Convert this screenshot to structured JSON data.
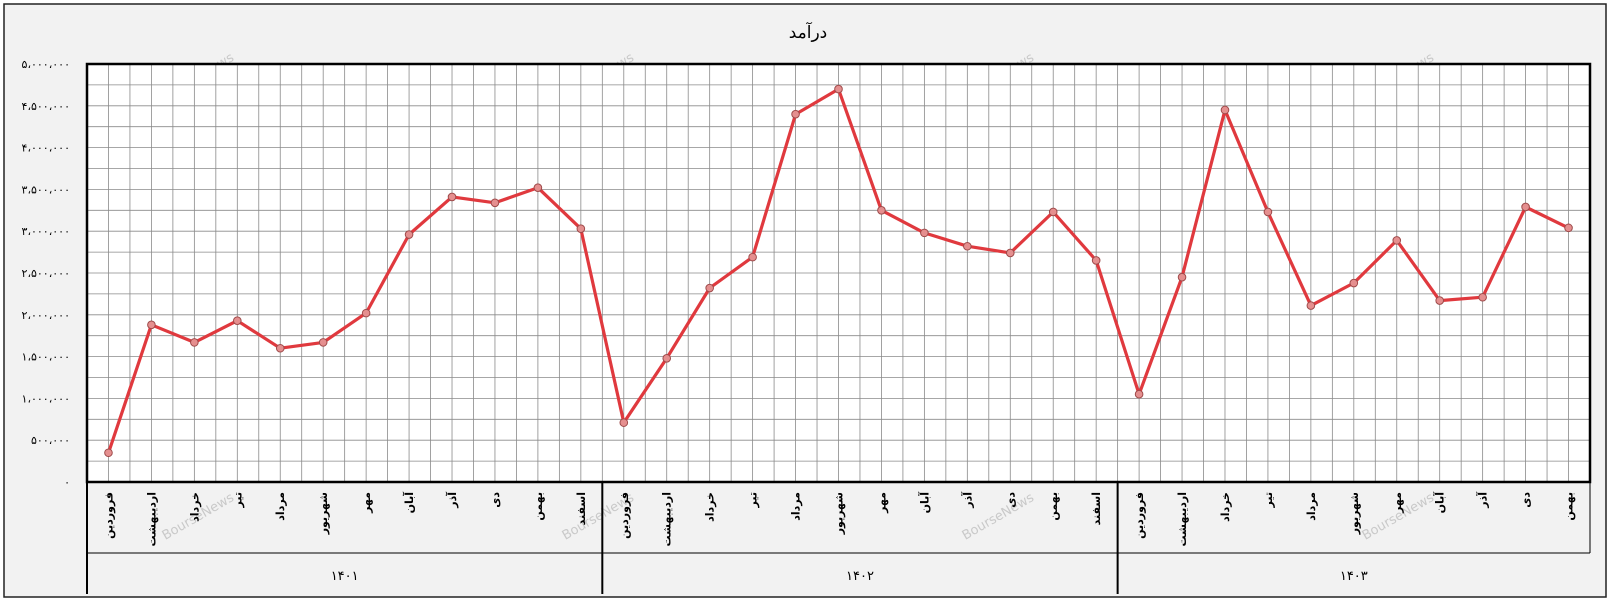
{
  "chart_data": {
    "type": "line",
    "title": "درآمد",
    "xlabel": "",
    "ylabel": "",
    "ylim": [
      0,
      5000000
    ],
    "yticks": [
      {
        "value": 0,
        "label": "۰"
      },
      {
        "value": 500000,
        "label": "۵۰۰،۰۰۰"
      },
      {
        "value": 1000000,
        "label": "۱،۰۰۰،۰۰۰"
      },
      {
        "value": 1500000,
        "label": "۱،۵۰۰،۰۰۰"
      },
      {
        "value": 2000000,
        "label": "۲،۰۰۰،۰۰۰"
      },
      {
        "value": 2500000,
        "label": "۲،۵۰۰،۰۰۰"
      },
      {
        "value": 3000000,
        "label": "۳،۰۰۰،۰۰۰"
      },
      {
        "value": 3500000,
        "label": "۳،۵۰۰،۰۰۰"
      },
      {
        "value": 4000000,
        "label": "۴،۰۰۰،۰۰۰"
      },
      {
        "value": 4500000,
        "label": "۴،۵۰۰،۰۰۰"
      },
      {
        "value": 5000000,
        "label": "۵،۰۰۰،۰۰۰"
      }
    ],
    "grid": true,
    "legend": "none",
    "watermark": "BourseNews",
    "line_color": "#e0393e",
    "marker_color": "#e58f8f",
    "groups": [
      {
        "label": "۱۴۰۱",
        "count": 12
      },
      {
        "label": "۱۴۰۲",
        "count": 12
      },
      {
        "label": "۱۴۰۳",
        "count": 11
      }
    ],
    "categories": [
      "فروردین",
      "اردیبهشت",
      "خرداد",
      "تیر",
      "مرداد",
      "شهریور",
      "مهر",
      "آبان",
      "آذر",
      "دی",
      "بهمن",
      "اسفند",
      "فروردین",
      "اردیبهشت",
      "خرداد",
      "تیر",
      "مرداد",
      "شهریور",
      "مهر",
      "آبان",
      "آذر",
      "دی",
      "بهمن",
      "اسفند",
      "فروردین",
      "اردیبهشت",
      "خرداد",
      "تیر",
      "مرداد",
      "شهریور",
      "مهر",
      "آبان",
      "آذر",
      "دی",
      "بهمن"
    ],
    "series": [
      {
        "values": [
          350000,
          1880000,
          1670000,
          1930000,
          1600000,
          1670000,
          2020000,
          2960000,
          3410000,
          3340000,
          3520000,
          3030000,
          710000,
          1480000,
          2320000,
          2690000,
          4400000,
          4700000,
          3250000,
          2980000,
          2820000,
          2740000,
          3230000,
          2650000,
          1050000,
          2450000,
          4450000,
          3230000,
          2110000,
          2380000,
          2890000,
          2170000,
          2210000,
          3290000,
          3040000
        ]
      }
    ]
  }
}
